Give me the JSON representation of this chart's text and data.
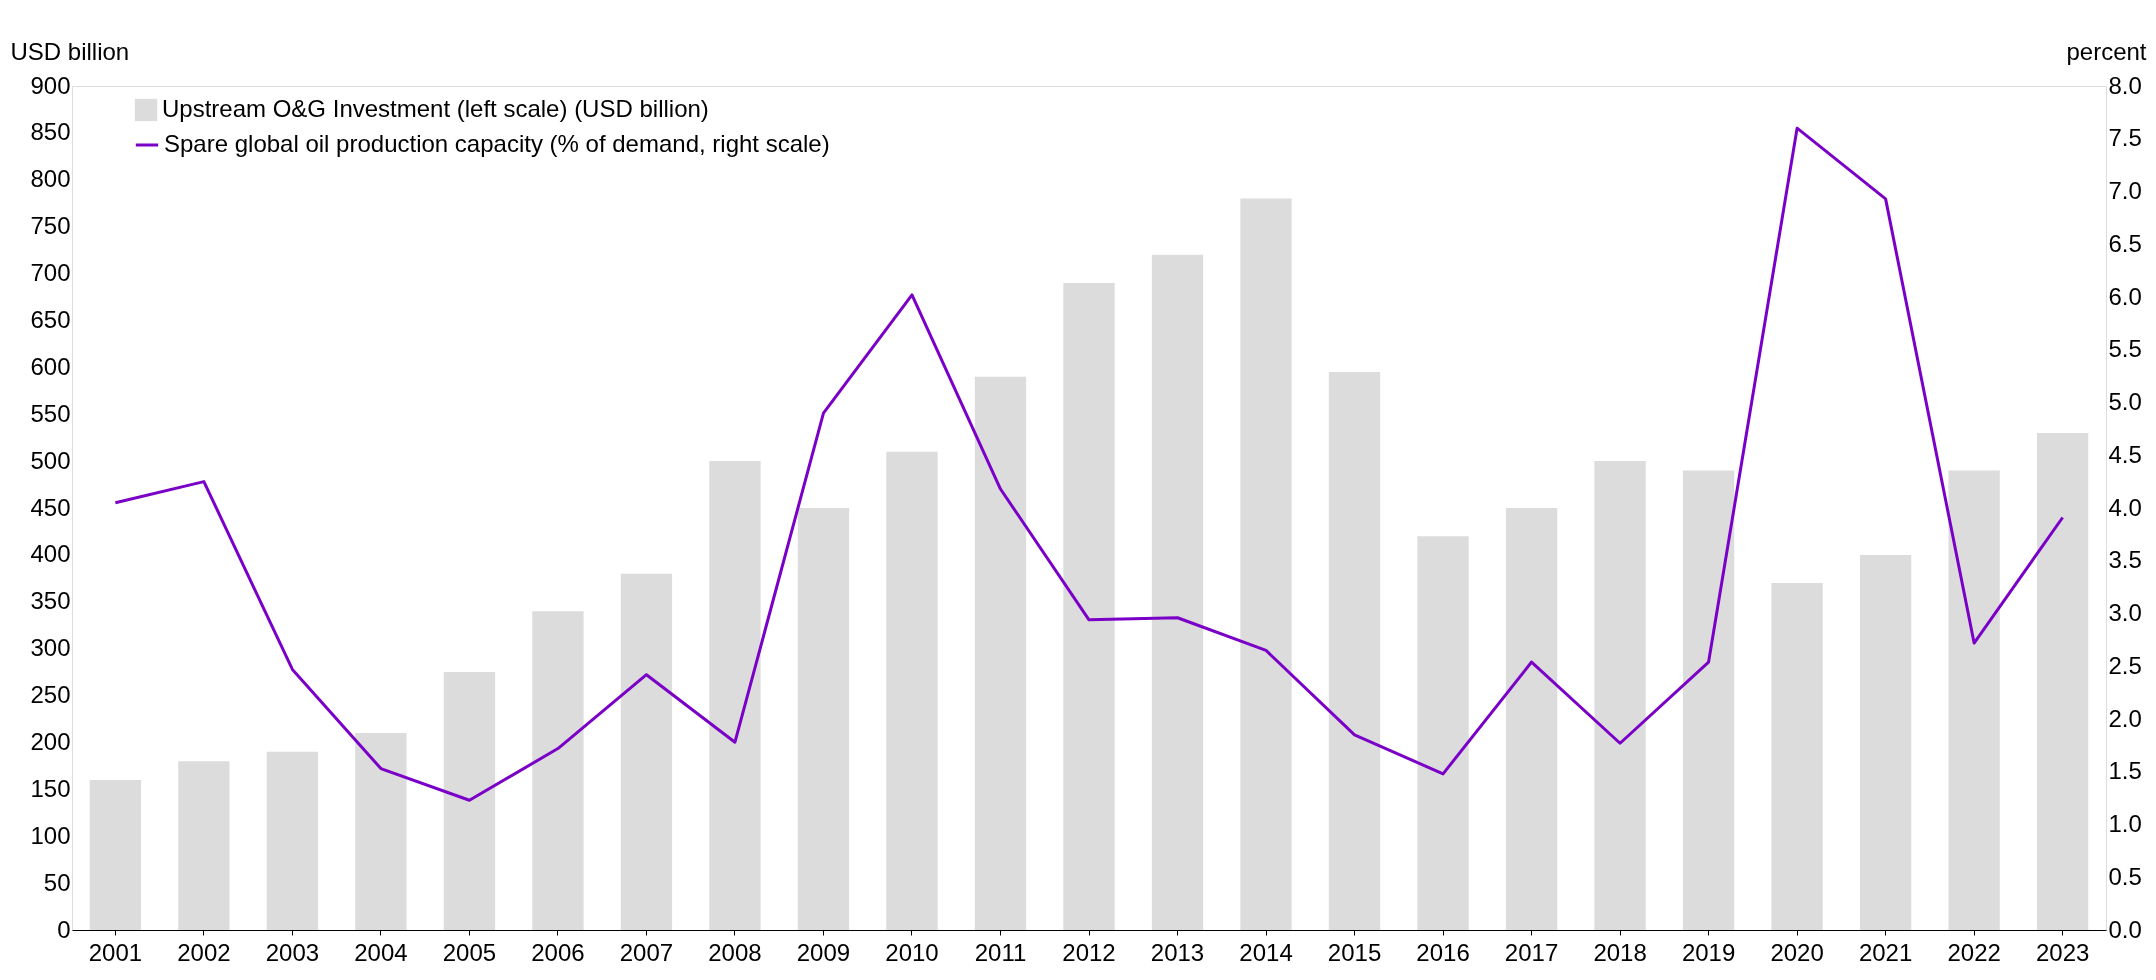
{
  "chart_data": {
    "type": "bar",
    "ylabel": "USD billion",
    "y2label": "percent",
    "categories": [
      "2001",
      "2002",
      "2003",
      "2004",
      "2005",
      "2006",
      "2007",
      "2008",
      "2009",
      "2010",
      "2011",
      "2012",
      "2013",
      "2014",
      "2015",
      "2016",
      "2017",
      "2018",
      "2019",
      "2020",
      "2021",
      "2022",
      "2023"
    ],
    "series": [
      {
        "name": "Upstream O&G Investment (left scale) (USD billion)",
        "color": "#dcdcdc",
        "values": [
          160,
          180,
          190,
          210,
          275,
          340,
          380,
          500,
          450,
          510,
          590,
          690,
          720,
          780,
          595,
          420,
          450,
          500,
          490,
          370,
          400,
          490,
          530
        ]
      },
      {
        "name": "Spare global oil production capacity (% of demand, right scale)",
        "type": "line",
        "axis": "y2",
        "color": "#7a00c8",
        "values": [
          4.05,
          4.25,
          2.47,
          1.53,
          1.23,
          1.72,
          2.42,
          1.78,
          4.9,
          6.02,
          4.18,
          2.94,
          2.96,
          2.65,
          1.85,
          1.48,
          2.54,
          1.77,
          2.54,
          7.6,
          6.93,
          2.72,
          3.91
        ]
      }
    ],
    "ylim": [
      0,
      900
    ],
    "yticks": [
      0,
      50,
      100,
      150,
      200,
      250,
      300,
      350,
      400,
      450,
      500,
      550,
      600,
      650,
      700,
      750,
      800,
      850,
      900
    ],
    "y2lim": [
      0,
      8
    ],
    "y2ticks": [
      {
        "value": 0,
        "label": "0.0"
      },
      {
        "value": 0.5,
        "label": "0.5"
      },
      {
        "value": 1,
        "label": "1.0"
      },
      {
        "value": 1.5,
        "label": "1.5"
      },
      {
        "value": 2,
        "label": "2.0"
      },
      {
        "value": 2.5,
        "label": "2.5"
      },
      {
        "value": 3,
        "label": "3.0"
      },
      {
        "value": 3.5,
        "label": "3.5"
      },
      {
        "value": 4,
        "label": "4.0"
      },
      {
        "value": 4.5,
        "label": "4.5"
      },
      {
        "value": 5,
        "label": "5.0"
      },
      {
        "value": 5.5,
        "label": "5.5"
      },
      {
        "value": 6,
        "label": "6.0"
      },
      {
        "value": 6.5,
        "label": "6.5"
      },
      {
        "value": 7,
        "label": "7.0"
      },
      {
        "value": 7.5,
        "label": "7.5"
      },
      {
        "value": 8,
        "label": "8.0"
      }
    ],
    "grid": false,
    "legend": "top left",
    "marker": "none",
    "line_style": "solid"
  }
}
